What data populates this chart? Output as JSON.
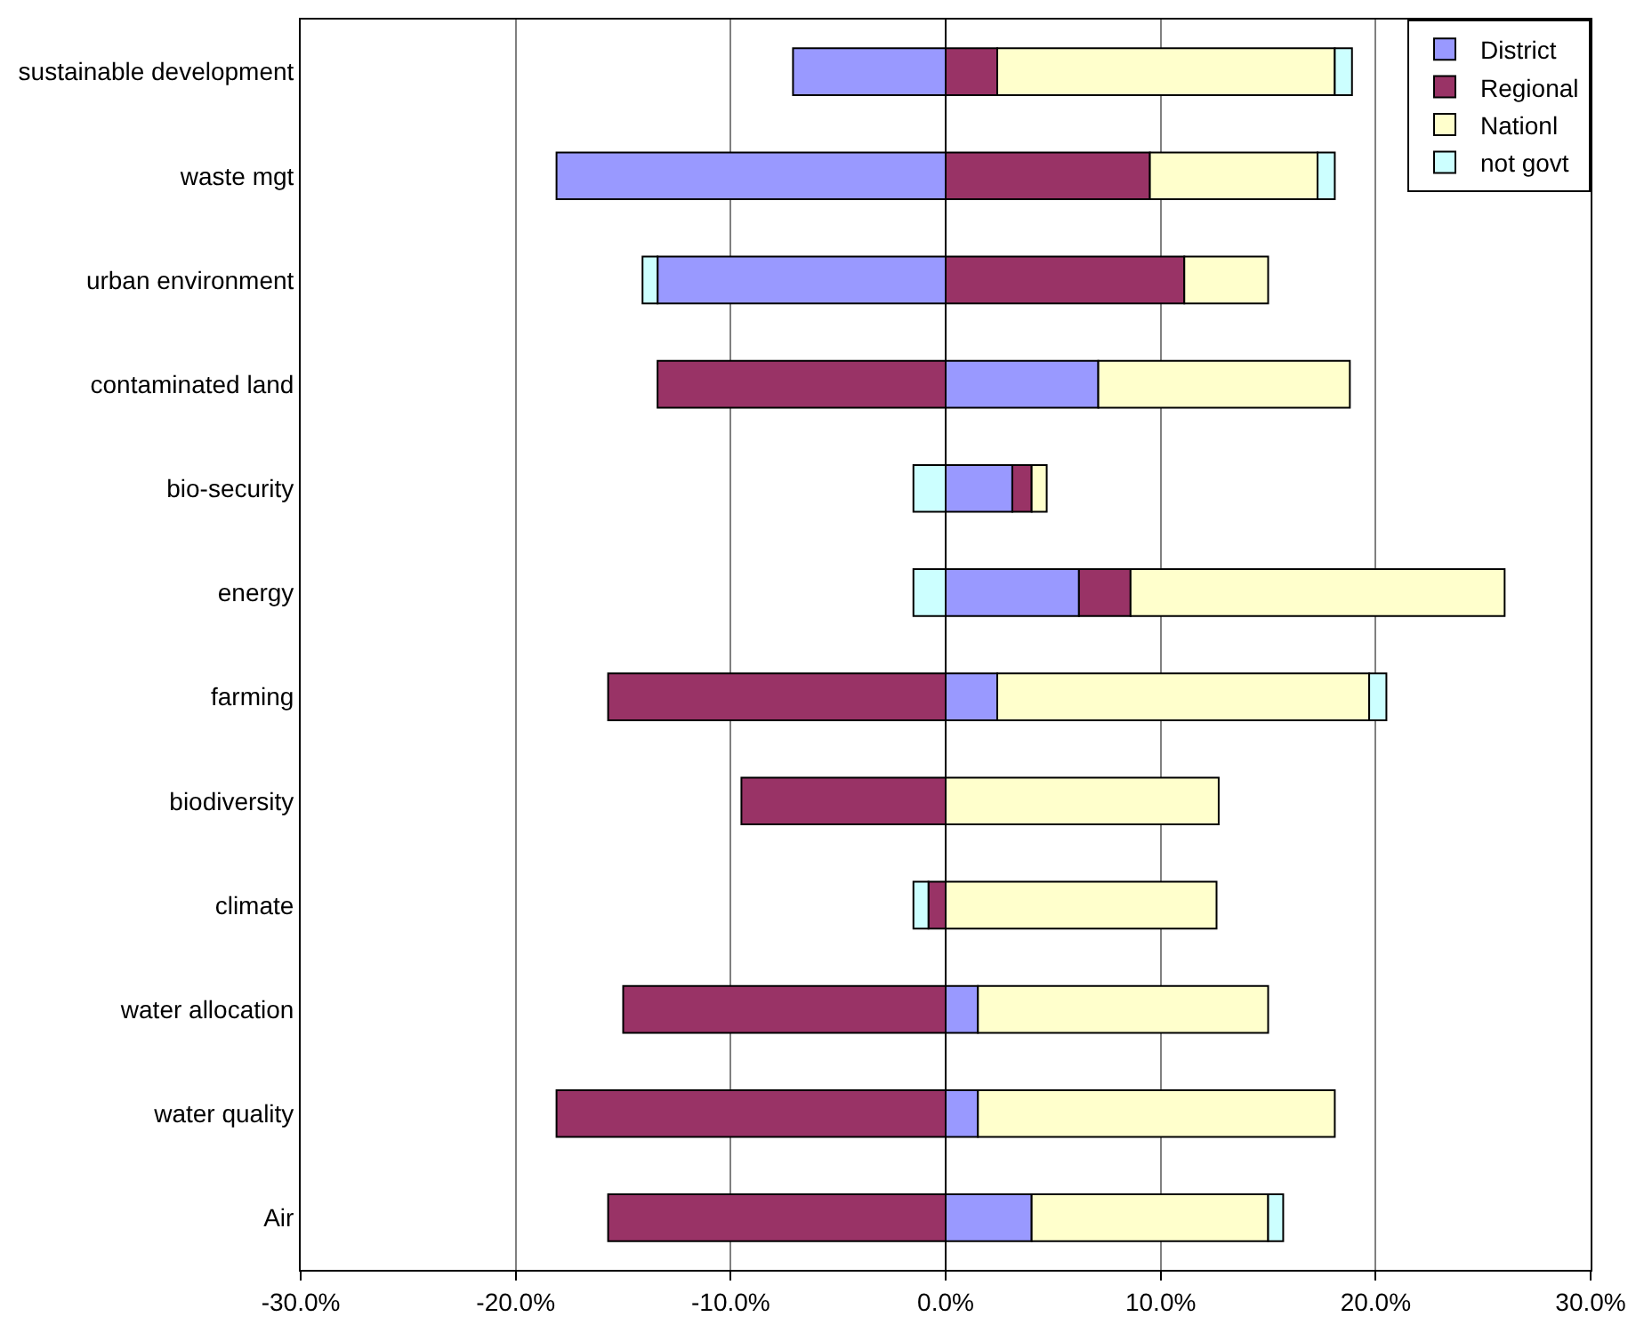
{
  "chart_data": {
    "type": "bar",
    "orientation": "horizontal",
    "stacked": true,
    "categories": [
      "sustainable development",
      "waste mgt",
      "urban environment",
      "contaminated land",
      "bio-security",
      "energy",
      "farming",
      "biodiversity",
      "climate",
      "water allocation",
      "water quality",
      "Air"
    ],
    "series": [
      {
        "name": "District",
        "color": "#9999ff",
        "values": [
          -7.1,
          -18.1,
          -13.4,
          7.1,
          3.1,
          6.2,
          2.4,
          null,
          null,
          1.5,
          1.5,
          4.0
        ]
      },
      {
        "name": "Regional",
        "color": "#993366",
        "values": [
          2.4,
          9.5,
          11.1,
          -13.4,
          0.9,
          2.4,
          -15.7,
          -9.5,
          -0.8,
          -15.0,
          -18.1,
          -15.7
        ]
      },
      {
        "name": "Nationl",
        "color": "#ffffcc",
        "values": [
          15.7,
          7.8,
          3.9,
          11.7,
          0.7,
          17.4,
          17.3,
          12.7,
          12.6,
          13.5,
          16.6,
          11.0
        ]
      },
      {
        "name": "not govt",
        "color": "#ccffff",
        "values": [
          0.8,
          0.8,
          -0.7,
          null,
          -1.5,
          -1.5,
          0.8,
          null,
          -0.7,
          null,
          null,
          0.7
        ]
      }
    ],
    "xlim": [
      -30,
      30
    ],
    "xticks": [
      {
        "value": -30,
        "label": "-30.0%"
      },
      {
        "value": -20,
        "label": "-20.0%"
      },
      {
        "value": -10,
        "label": "-10.0%"
      },
      {
        "value": 0,
        "label": "0.0%"
      },
      {
        "value": 10,
        "label": "10.0%"
      },
      {
        "value": 20,
        "label": "20.0%"
      },
      {
        "value": 30,
        "label": "30.0%"
      }
    ],
    "grid": "x",
    "legend": "top right"
  }
}
